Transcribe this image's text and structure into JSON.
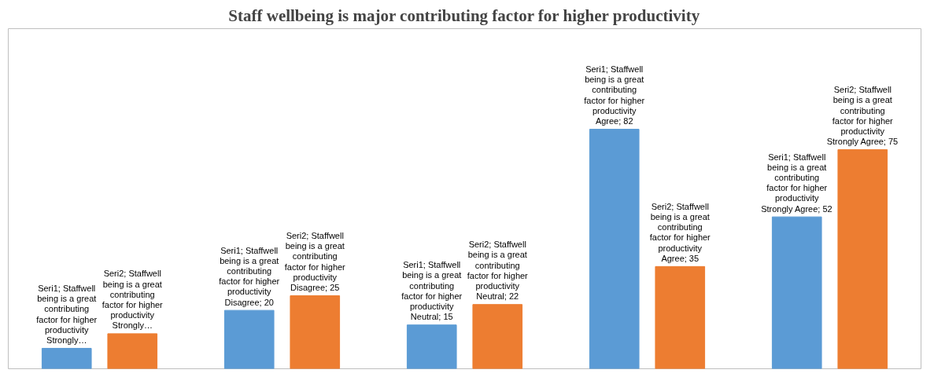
{
  "chart_data": {
    "type": "bar",
    "title": "Staff wellbeing is major contributing factor for higher productivity",
    "categories": [
      null,
      null,
      null,
      null,
      null
    ],
    "series": [
      {
        "color": "#5b9bd5",
        "values": [
          7,
          20,
          15,
          82,
          52
        ],
        "value_labels": [
          "Seri1; Staffwell being is a great contributing factor for higher productivity Strongly…",
          "Seri1; Staffwell being is a great contributing factor for higher productivity Disagree; 20",
          "Seri1; Staffwell being is a great contributing factor for higher productivity Neutral; 15",
          "Seri1; Staffwell being is a great contributing factor for higher productivity Agree; 82",
          "Seri1; Staffwell being is a great contributing factor for higher productivity Strongly Agree; 52"
        ]
      },
      {
        "color": "#ed7d31",
        "values": [
          12,
          25,
          22,
          35,
          75
        ],
        "value_labels": [
          "Seri2; Staffwell being is a great contributing factor for higher productivity Strongly…",
          "Seri2; Staffwell being is a great contributing factor for higher productivity Disagree; 25",
          "Seri2; Staffwell being is a great contributing factor for higher productivity Neutral; 22",
          "Seri2; Staffwell being is a great contributing factor for higher productivity Agree; 35",
          "Seri2; Staffwell being is a great contributing factor for higher productivity Strongly Agree; 75"
        ]
      }
    ],
    "grid": false
  }
}
